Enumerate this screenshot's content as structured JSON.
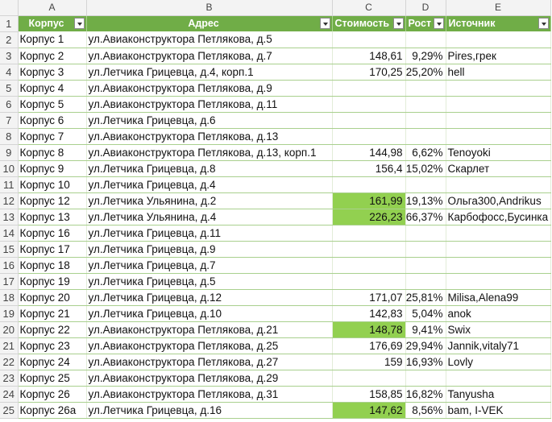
{
  "columns": [
    "A",
    "B",
    "C",
    "D",
    "E"
  ],
  "header": {
    "row": "1",
    "korpus": "Корпус",
    "address": "Адрес",
    "cost": "Стоимость",
    "growth": "Рост",
    "source": "Источник"
  },
  "rows": [
    {
      "n": "2",
      "korpus": "Корпус 1",
      "address": "ул.Авиаконструктора Петлякова, д.5",
      "cost": "",
      "growth": "",
      "source": ""
    },
    {
      "n": "3",
      "korpus": "Корпус 2",
      "address": "ул.Авиаконструктора Петлякова, д.7",
      "cost": "148,61",
      "growth": "9,29%",
      "source": "Pires,грек"
    },
    {
      "n": "4",
      "korpus": "Корпус 3",
      "address": "ул.Летчика Грицевца, д.4, корп.1",
      "cost": "170,25",
      "growth": "25,20%",
      "source": "hell"
    },
    {
      "n": "5",
      "korpus": "Корпус 4",
      "address": "ул.Авиаконструктора Петлякова, д.9",
      "cost": "",
      "growth": "",
      "source": ""
    },
    {
      "n": "6",
      "korpus": "Корпус 5",
      "address": "ул.Авиаконструктора Петлякова, д.11",
      "cost": "",
      "growth": "",
      "source": ""
    },
    {
      "n": "7",
      "korpus": "Корпус 6",
      "address": "ул.Летчика Грицевца, д.6",
      "cost": "",
      "growth": "",
      "source": ""
    },
    {
      "n": "8",
      "korpus": "Корпус 7",
      "address": "ул.Авиаконструктора Петлякова, д.13",
      "cost": "",
      "growth": "",
      "source": ""
    },
    {
      "n": "9",
      "korpus": "Корпус 8",
      "address": "ул.Авиаконструктора Петлякова, д.13, корп.1",
      "cost": "144,98",
      "growth": "6,62%",
      "source": "Tenoyoki"
    },
    {
      "n": "10",
      "korpus": "Корпус 9",
      "address": "ул.Летчика Грицевца, д.8",
      "cost": "156,4",
      "growth": "15,02%",
      "source": "Скарлет"
    },
    {
      "n": "11",
      "korpus": "Корпус 10",
      "address": "ул.Летчика Грицевца, д.4",
      "cost": "",
      "growth": "",
      "source": ""
    },
    {
      "n": "12",
      "korpus": "Корпус 12",
      "address": "ул.Летчика Ульянина, д.2",
      "cost": "161,99",
      "growth": "19,13%",
      "source": "Ольга300,Andrikus",
      "highlight": true
    },
    {
      "n": "13",
      "korpus": "Корпус 13",
      "address": "ул.Летчика Ульянина, д.4",
      "cost": "226,23",
      "growth": "66,37%",
      "source": "Карбофосс,Бусинка",
      "highlight": true
    },
    {
      "n": "14",
      "korpus": "Корпус 16",
      "address": "ул.Летчика Грицевца, д.11",
      "cost": "",
      "growth": "",
      "source": ""
    },
    {
      "n": "15",
      "korpus": "Корпус 17",
      "address": "ул.Летчика Грицевца, д.9",
      "cost": "",
      "growth": "",
      "source": ""
    },
    {
      "n": "16",
      "korpus": "Корпус 18",
      "address": "ул.Летчика Грицевца, д.7",
      "cost": "",
      "growth": "",
      "source": ""
    },
    {
      "n": "17",
      "korpus": "Корпус 19",
      "address": "ул.Летчика Грицевца, д.5",
      "cost": "",
      "growth": "",
      "source": ""
    },
    {
      "n": "18",
      "korpus": "Корпус 20",
      "address": "ул.Летчика Грицевца, д.12",
      "cost": "171,07",
      "growth": "25,81%",
      "source": "Milisa,Alena99"
    },
    {
      "n": "19",
      "korpus": "Корпус 21",
      "address": "ул.Летчика Грицевца, д.10",
      "cost": "142,83",
      "growth": "5,04%",
      "source": "anok"
    },
    {
      "n": "20",
      "korpus": "Корпус 22",
      "address": "ул.Авиаконструктора Петлякова, д.21",
      "cost": "148,78",
      "growth": "9,41%",
      "source": "Swix",
      "highlight": true
    },
    {
      "n": "21",
      "korpus": "Корпус 23",
      "address": "ул.Авиаконструктора Петлякова, д.25",
      "cost": "176,69",
      "growth": "29,94%",
      "source": "Jannik,vitaly71"
    },
    {
      "n": "22",
      "korpus": "Корпус 24",
      "address": "ул.Авиаконструктора Петлякова, д.27",
      "cost": "159",
      "growth": "16,93%",
      "source": "Lovly"
    },
    {
      "n": "23",
      "korpus": "Корпус 25",
      "address": "ул.Авиаконструктора Петлякова, д.29",
      "cost": "",
      "growth": "",
      "source": ""
    },
    {
      "n": "24",
      "korpus": "Корпус 26",
      "address": "ул.Авиаконструктора Петлякова, д.31",
      "cost": "158,85",
      "growth": "16,82%",
      "source": "Tanyusha"
    },
    {
      "n": "25",
      "korpus": "Корпус 26а",
      "address": "ул.Летчика Грицевца, д.16",
      "cost": "147,62",
      "growth": "8,56%",
      "source": "bam, I-VEK",
      "highlight": true
    }
  ]
}
